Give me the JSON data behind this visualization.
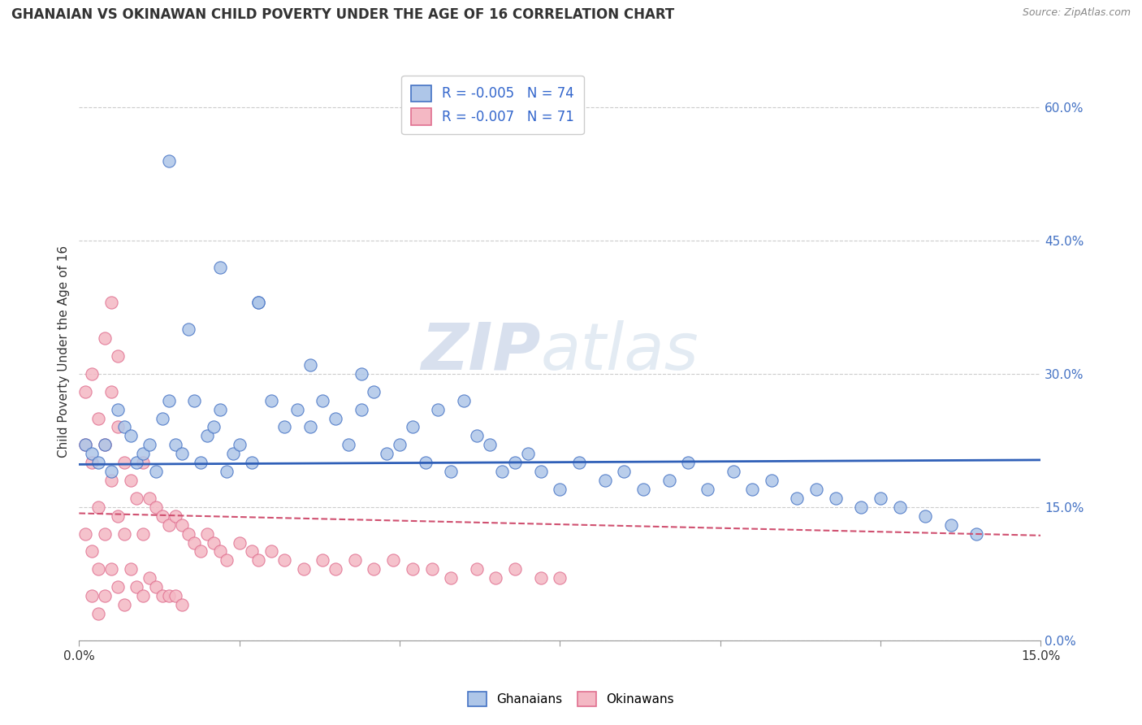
{
  "title": "GHANAIAN VS OKINAWAN CHILD POVERTY UNDER THE AGE OF 16 CORRELATION CHART",
  "source": "Source: ZipAtlas.com",
  "ylabel": "Child Poverty Under the Age of 16",
  "xlim": [
    0.0,
    0.15
  ],
  "ylim": [
    0.0,
    0.65
  ],
  "xtick_positions": [
    0.0,
    0.025,
    0.05,
    0.075,
    0.1,
    0.125,
    0.15
  ],
  "xtick_labels": [
    "0.0%",
    "",
    "",
    "",
    "",
    "",
    "15.0%"
  ],
  "ytick_positions": [
    0.0,
    0.15,
    0.3,
    0.45,
    0.6
  ],
  "ytick_labels": [
    "0.0%",
    "15.0%",
    "30.0%",
    "45.0%",
    "60.0%"
  ],
  "legend_r1": "-0.005",
  "legend_n1": "74",
  "legend_r2": "-0.007",
  "legend_n2": "71",
  "color_blue_fill": "#aec6e8",
  "color_blue_edge": "#4472c4",
  "color_pink_fill": "#f4b8c4",
  "color_pink_edge": "#e07090",
  "color_blue_line": "#3060b8",
  "color_pink_line": "#d05070",
  "title_fontsize": 12,
  "blue_trend_y0": 0.198,
  "blue_trend_y1": 0.203,
  "pink_trend_y0": 0.143,
  "pink_trend_y1": 0.118,
  "blue_x": [
    0.001,
    0.002,
    0.003,
    0.004,
    0.005,
    0.006,
    0.007,
    0.008,
    0.009,
    0.01,
    0.011,
    0.012,
    0.013,
    0.014,
    0.015,
    0.016,
    0.017,
    0.018,
    0.019,
    0.02,
    0.021,
    0.022,
    0.023,
    0.024,
    0.025,
    0.027,
    0.028,
    0.03,
    0.032,
    0.034,
    0.036,
    0.038,
    0.04,
    0.042,
    0.044,
    0.046,
    0.048,
    0.05,
    0.052,
    0.054,
    0.056,
    0.058,
    0.06,
    0.062,
    0.064,
    0.066,
    0.068,
    0.07,
    0.072,
    0.075,
    0.078,
    0.082,
    0.085,
    0.088,
    0.092,
    0.095,
    0.098,
    0.102,
    0.105,
    0.108,
    0.112,
    0.115,
    0.118,
    0.122,
    0.125,
    0.128,
    0.132,
    0.136,
    0.14,
    0.014,
    0.022,
    0.028,
    0.036,
    0.044
  ],
  "blue_y": [
    0.22,
    0.21,
    0.2,
    0.22,
    0.19,
    0.26,
    0.24,
    0.23,
    0.2,
    0.21,
    0.22,
    0.19,
    0.25,
    0.27,
    0.22,
    0.21,
    0.35,
    0.27,
    0.2,
    0.23,
    0.24,
    0.26,
    0.19,
    0.21,
    0.22,
    0.2,
    0.38,
    0.27,
    0.24,
    0.26,
    0.24,
    0.27,
    0.25,
    0.22,
    0.26,
    0.28,
    0.21,
    0.22,
    0.24,
    0.2,
    0.26,
    0.19,
    0.27,
    0.23,
    0.22,
    0.19,
    0.2,
    0.21,
    0.19,
    0.17,
    0.2,
    0.18,
    0.19,
    0.17,
    0.18,
    0.2,
    0.17,
    0.19,
    0.17,
    0.18,
    0.16,
    0.17,
    0.16,
    0.15,
    0.16,
    0.15,
    0.14,
    0.13,
    0.12,
    0.54,
    0.42,
    0.38,
    0.31,
    0.3
  ],
  "pink_x": [
    0.001,
    0.001,
    0.001,
    0.002,
    0.002,
    0.002,
    0.002,
    0.003,
    0.003,
    0.003,
    0.003,
    0.004,
    0.004,
    0.004,
    0.005,
    0.005,
    0.005,
    0.006,
    0.006,
    0.006,
    0.007,
    0.007,
    0.007,
    0.008,
    0.008,
    0.009,
    0.009,
    0.01,
    0.01,
    0.01,
    0.011,
    0.011,
    0.012,
    0.012,
    0.013,
    0.013,
    0.014,
    0.014,
    0.015,
    0.015,
    0.016,
    0.016,
    0.017,
    0.018,
    0.019,
    0.02,
    0.021,
    0.022,
    0.023,
    0.025,
    0.027,
    0.028,
    0.03,
    0.032,
    0.035,
    0.038,
    0.04,
    0.043,
    0.046,
    0.049,
    0.052,
    0.055,
    0.058,
    0.062,
    0.065,
    0.068,
    0.072,
    0.075,
    0.004,
    0.005,
    0.006
  ],
  "pink_y": [
    0.28,
    0.22,
    0.12,
    0.3,
    0.2,
    0.1,
    0.05,
    0.25,
    0.15,
    0.08,
    0.03,
    0.22,
    0.12,
    0.05,
    0.28,
    0.18,
    0.08,
    0.24,
    0.14,
    0.06,
    0.2,
    0.12,
    0.04,
    0.18,
    0.08,
    0.16,
    0.06,
    0.2,
    0.12,
    0.05,
    0.16,
    0.07,
    0.15,
    0.06,
    0.14,
    0.05,
    0.13,
    0.05,
    0.14,
    0.05,
    0.13,
    0.04,
    0.12,
    0.11,
    0.1,
    0.12,
    0.11,
    0.1,
    0.09,
    0.11,
    0.1,
    0.09,
    0.1,
    0.09,
    0.08,
    0.09,
    0.08,
    0.09,
    0.08,
    0.09,
    0.08,
    0.08,
    0.07,
    0.08,
    0.07,
    0.08,
    0.07,
    0.07,
    0.34,
    0.38,
    0.32
  ]
}
